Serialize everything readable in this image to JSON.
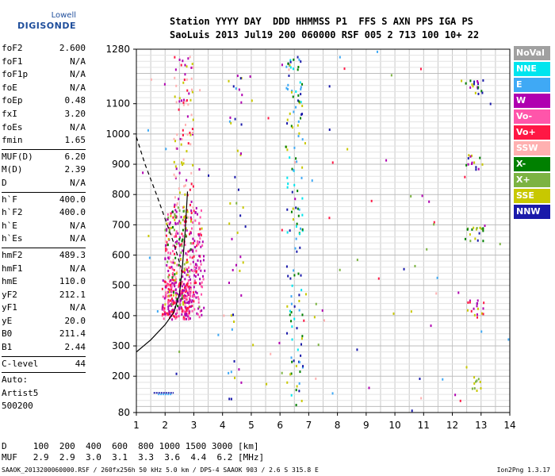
{
  "logo": {
    "line1": "Lowell",
    "line2": "DIGISONDE"
  },
  "header": {
    "line1": "Station YYYY DAY  DDD HHMMSS P1  FFS S AXN PPS IGA PS",
    "line2": "SaoLuis 2013 Jul19 200 060000 RSF 005 2 713 100 10+ 22"
  },
  "params": {
    "g1": [
      {
        "label": "foF2",
        "value": "2.600"
      },
      {
        "label": "foF1",
        "value": "N/A"
      },
      {
        "label": "foF1p",
        "value": "N/A"
      },
      {
        "label": "foE",
        "value": "N/A"
      },
      {
        "label": "foEp",
        "value": "0.48"
      },
      {
        "label": "fxI",
        "value": "3.20"
      },
      {
        "label": "foEs",
        "value": "N/A"
      },
      {
        "label": "fmin",
        "value": "1.65"
      }
    ],
    "g2": [
      {
        "label": "MUF(D)",
        "value": "6.20"
      },
      {
        "label": "M(D)",
        "value": "2.39"
      },
      {
        "label": "D",
        "value": "N/A"
      }
    ],
    "g3": [
      {
        "label": "h`F",
        "value": "400.0"
      },
      {
        "label": "h`F2",
        "value": "400.0"
      },
      {
        "label": "h`E",
        "value": "N/A"
      },
      {
        "label": "h`Es",
        "value": "N/A"
      }
    ],
    "g4": [
      {
        "label": "hmF2",
        "value": "489.3"
      },
      {
        "label": "hmF1",
        "value": "N/A"
      },
      {
        "label": "hmE",
        "value": "110.0"
      },
      {
        "label": "yF2",
        "value": "212.1"
      },
      {
        "label": "yF1",
        "value": "N/A"
      },
      {
        "label": "yE",
        "value": "20.0"
      },
      {
        "label": "B0",
        "value": "211.4"
      },
      {
        "label": "B1",
        "value": "2.44"
      }
    ],
    "g5": [
      {
        "label": "C-level",
        "value": "44"
      }
    ],
    "g6": [
      "Auto:",
      "Artist5",
      "500200"
    ]
  },
  "legend": [
    {
      "label": "NoVal",
      "color": "#a0a0a0"
    },
    {
      "label": "NNE",
      "color": "#00e5ee"
    },
    {
      "label": "E",
      "color": "#3fa9f5"
    },
    {
      "label": "W",
      "color": "#b000b0"
    },
    {
      "label": "Vo-",
      "color": "#ff55aa"
    },
    {
      "label": "Vo+",
      "color": "#ff1744"
    },
    {
      "label": "SSW",
      "color": "#ffb0b0"
    },
    {
      "label": "X-",
      "color": "#008000"
    },
    {
      "label": "X+",
      "color": "#7cb342"
    },
    {
      "label": "SSE",
      "color": "#c8c800"
    },
    {
      "label": "NNW",
      "color": "#1a1aaa"
    }
  ],
  "footer": {
    "d_row": "D     100  200  400  600  800 1000 1500 3000 [km]",
    "muf_row": "MUF   2.9  2.9  3.0  3.1  3.3  3.6  4.4  6.2 [MHz]",
    "info": "SAAOK_2013200060000.RSF / 260fx256h 50 kHz 5.0 km / DPS-4 SAAOK 903 / 2.6 S 315.8 E",
    "version": "Ion2Png 1.3.17"
  },
  "chart_data": {
    "type": "scatter",
    "title": "",
    "xlabel": "",
    "ylabel": "",
    "xlim": [
      1,
      14
    ],
    "ylim": [
      80,
      1280
    ],
    "xticks": [
      1,
      2,
      3,
      4,
      5,
      6,
      7,
      8,
      9,
      10,
      11,
      12,
      13,
      14
    ],
    "yticks": [
      80,
      200,
      300,
      400,
      500,
      600,
      700,
      800,
      900,
      1000,
      1100,
      1280
    ],
    "grid": true,
    "legend_placement": "right",
    "curves": [
      {
        "style": "solid",
        "points": [
          [
            1.0,
            280
          ],
          [
            1.5,
            320
          ],
          [
            2.0,
            370
          ],
          [
            2.3,
            410
          ],
          [
            2.5,
            470
          ],
          [
            2.6,
            560
          ],
          [
            2.7,
            680
          ],
          [
            2.75,
            760
          ],
          [
            2.78,
            810
          ]
        ]
      },
      {
        "style": "dashed",
        "points": [
          [
            1.0,
            990
          ],
          [
            1.3,
            900
          ],
          [
            1.7,
            800
          ],
          [
            2.0,
            720
          ],
          [
            2.3,
            640
          ],
          [
            2.55,
            560
          ]
        ]
      }
    ],
    "clusters": [
      {
        "x": [
          1.9,
          2.9
        ],
        "y": [
          385,
          520
        ],
        "colors": [
          "#ff1744",
          "#b000b0",
          "#ff55aa"
        ],
        "n": 220
      },
      {
        "x": [
          2.0,
          3.3
        ],
        "y": [
          400,
          760
        ],
        "colors": [
          "#b000b0",
          "#ff55aa",
          "#ff1744"
        ],
        "n": 230
      },
      {
        "x": [
          2.0,
          2.9
        ],
        "y": [
          430,
          760
        ],
        "colors": [
          "#c8c800",
          "#7cb342",
          "#008000",
          "#ffb0b0"
        ],
        "n": 90
      },
      {
        "x": [
          2.3,
          3.0
        ],
        "y": [
          700,
          1260
        ],
        "colors": [
          "#c8c800",
          "#ffb0b0",
          "#ff1744",
          "#b000b0"
        ],
        "n": 100
      },
      {
        "x": [
          2.9,
          3.4
        ],
        "y": [
          390,
          680
        ],
        "colors": [
          "#b000b0",
          "#ff55aa"
        ],
        "n": 40
      },
      {
        "x": [
          4.2,
          4.8
        ],
        "y": [
          120,
          1200
        ],
        "colors": [
          "#1a1aaa",
          "#3fa9f5",
          "#b000b0",
          "#c8c800"
        ],
        "n": 45
      },
      {
        "x": [
          6.2,
          6.8
        ],
        "y": [
          100,
          1270
        ],
        "colors": [
          "#3fa9f5",
          "#00e5ee",
          "#1a1aaa",
          "#c8c800",
          "#008000"
        ],
        "n": 140
      },
      {
        "x": [
          12.45,
          13.1
        ],
        "y": [
          1130,
          1180
        ],
        "colors": [
          "#c8c800",
          "#1a1aaa",
          "#b000b0",
          "#008000"
        ],
        "n": 18
      },
      {
        "x": [
          12.45,
          13.1
        ],
        "y": [
          880,
          930
        ],
        "colors": [
          "#c8c800",
          "#1a1aaa",
          "#b000b0",
          "#008000"
        ],
        "n": 14
      },
      {
        "x": [
          12.45,
          13.1
        ],
        "y": [
          640,
          690
        ],
        "colors": [
          "#c8c800",
          "#1a1aaa",
          "#008000",
          "#7cb342"
        ],
        "n": 18
      },
      {
        "x": [
          12.45,
          13.1
        ],
        "y": [
          390,
          450
        ],
        "colors": [
          "#c8c800",
          "#1a1aaa",
          "#b000b0",
          "#ff1744"
        ],
        "n": 18
      },
      {
        "x": [
          12.6,
          13.0
        ],
        "y": [
          150,
          200
        ],
        "colors": [
          "#c8c800",
          "#7cb342"
        ],
        "n": 10
      },
      {
        "x": [
          1.2,
          14.0
        ],
        "y": [
          80,
          1280
        ],
        "colors": [
          "#b000b0",
          "#3fa9f5",
          "#c8c800",
          "#ff1744",
          "#1a1aaa",
          "#ffb0b0",
          "#7cb342"
        ],
        "n": 90
      }
    ],
    "segments": [
      {
        "x": [
          1.6,
          2.3
        ],
        "y": 145,
        "color": "#1a1aaa"
      },
      {
        "x": [
          1.75,
          2.25
        ],
        "y": 140,
        "color": "#3fa9f5"
      }
    ]
  }
}
